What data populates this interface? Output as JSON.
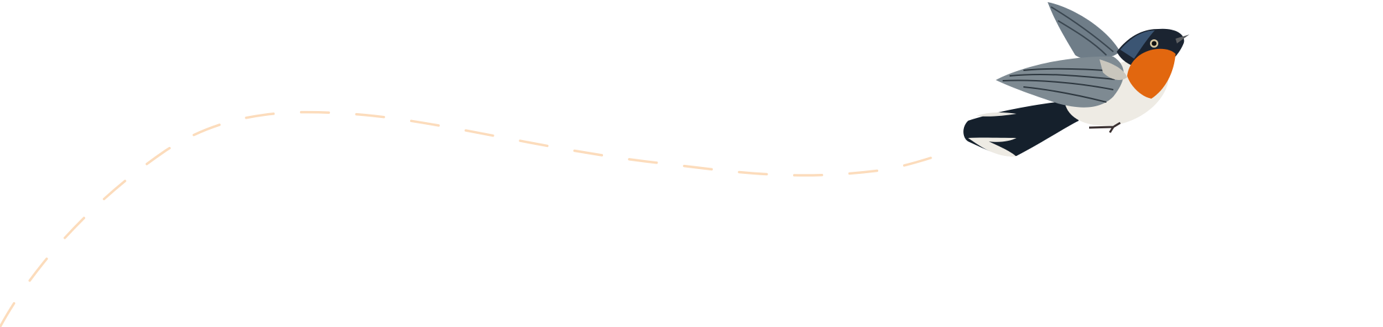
{
  "illustration": {
    "subject_icon": "bird-icon",
    "flight_path_style": "dashed",
    "colors": {
      "background": "#ffffff",
      "flight_path": "#fcdcbc",
      "bird_throat": "#e2670f",
      "bird_head": "#1b2431",
      "bird_back": "#2e4a66",
      "bird_wing": "#7e8a92",
      "bird_belly": "#eeebe4"
    }
  }
}
